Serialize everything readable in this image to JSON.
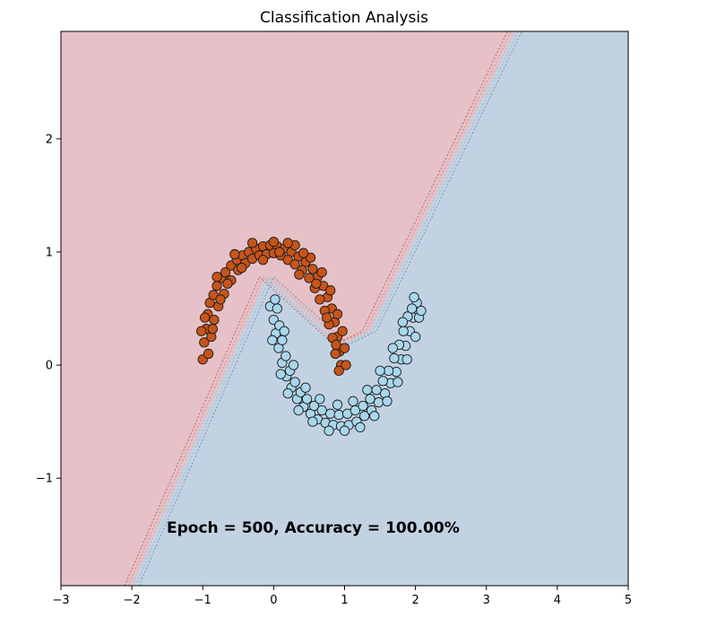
{
  "chart_data": {
    "type": "scatter",
    "title": "Classification Analysis",
    "xlabel": "",
    "ylabel": "",
    "xlim": [
      -3,
      5
    ],
    "ylim": [
      -1.95,
      2.95
    ],
    "x_ticks": [
      -3,
      -2,
      -1,
      0,
      1,
      2,
      3,
      4,
      5
    ],
    "x_tick_labels": [
      "−3",
      "−2",
      "−1",
      "0",
      "1",
      "2",
      "3",
      "4",
      "5"
    ],
    "y_ticks": [
      -1,
      0,
      1,
      2
    ],
    "y_tick_labels": [
      "−1",
      "0",
      "1",
      "2"
    ],
    "grid": false,
    "annotation": "Epoch = 500, Accuracy = 100.00%",
    "colors": {
      "region_class_0": "#e6c1c7",
      "region_class_1": "#c3d2e3",
      "points_class_0": "#c7541a",
      "points_class_1": "#a9d6ec",
      "point_edge": "#1a1a1a",
      "boundary_lines": [
        "#b05050",
        "#d08a7a",
        "#c8b8b8",
        "#9fb4c8",
        "#5f87ab"
      ]
    },
    "decision_boundary": [
      [
        -2.0,
        -1.95
      ],
      [
        -0.1,
        0.78
      ],
      [
        0.95,
        0.18
      ],
      [
        1.35,
        0.3
      ],
      [
        3.4,
        2.95
      ]
    ],
    "series": [
      {
        "class": 0,
        "points": [
          [
            -1.0,
            0.05
          ],
          [
            -0.98,
            0.2
          ],
          [
            -0.95,
            0.32
          ],
          [
            -0.93,
            0.45
          ],
          [
            -0.9,
            0.55
          ],
          [
            -0.85,
            0.62
          ],
          [
            -0.8,
            0.7
          ],
          [
            -0.74,
            0.77
          ],
          [
            -0.68,
            0.82
          ],
          [
            -0.6,
            0.88
          ],
          [
            -0.52,
            0.93
          ],
          [
            -0.44,
            0.97
          ],
          [
            -0.35,
            1.0
          ],
          [
            -0.25,
            1.03
          ],
          [
            -0.15,
            1.05
          ],
          [
            -0.05,
            1.06
          ],
          [
            0.05,
            1.05
          ],
          [
            0.15,
            1.03
          ],
          [
            0.25,
            1.0
          ],
          [
            0.35,
            0.96
          ],
          [
            0.45,
            0.91
          ],
          [
            0.55,
            0.85
          ],
          [
            0.62,
            0.78
          ],
          [
            0.7,
            0.7
          ],
          [
            0.76,
            0.6
          ],
          [
            0.82,
            0.5
          ],
          [
            0.86,
            0.38
          ],
          [
            0.9,
            0.25
          ],
          [
            0.93,
            0.12
          ],
          [
            0.95,
            0.0
          ],
          [
            -0.92,
            0.1
          ],
          [
            -0.88,
            0.25
          ],
          [
            -0.84,
            0.4
          ],
          [
            -0.78,
            0.52
          ],
          [
            -0.7,
            0.63
          ],
          [
            -0.6,
            0.75
          ],
          [
            -0.5,
            0.84
          ],
          [
            -0.4,
            0.9
          ],
          [
            -0.3,
            0.94
          ],
          [
            -0.2,
            0.97
          ],
          [
            -0.1,
            0.98
          ],
          [
            0.0,
            0.99
          ],
          [
            0.1,
            0.97
          ],
          [
            0.2,
            0.93
          ],
          [
            0.3,
            0.89
          ],
          [
            0.4,
            0.84
          ],
          [
            0.5,
            0.77
          ],
          [
            0.58,
            0.68
          ],
          [
            0.65,
            0.58
          ],
          [
            0.72,
            0.48
          ],
          [
            0.78,
            0.36
          ],
          [
            0.83,
            0.24
          ],
          [
            0.87,
            0.1
          ],
          [
            -1.02,
            0.3
          ],
          [
            -0.97,
            0.42
          ],
          [
            -0.8,
            0.78
          ],
          [
            -0.55,
            0.98
          ],
          [
            -0.3,
            1.08
          ],
          [
            0.0,
            1.09
          ],
          [
            0.3,
            1.06
          ],
          [
            0.52,
            0.95
          ],
          [
            0.68,
            0.82
          ],
          [
            0.8,
            0.66
          ],
          [
            0.9,
            0.45
          ],
          [
            0.97,
            0.3
          ],
          [
            1.0,
            0.15
          ],
          [
            1.02,
            0.0
          ],
          [
            -0.86,
            0.32
          ],
          [
            -0.75,
            0.58
          ],
          [
            -0.45,
            0.86
          ],
          [
            -0.15,
            0.93
          ],
          [
            0.2,
            1.08
          ],
          [
            0.42,
            0.99
          ],
          [
            0.6,
            0.72
          ],
          [
            0.75,
            0.42
          ],
          [
            0.88,
            0.18
          ],
          [
            0.92,
            -0.05
          ],
          [
            -0.65,
            0.72
          ],
          [
            0.08,
            1.0
          ],
          [
            0.36,
            0.8
          ]
        ]
      },
      {
        "class": 1,
        "points": [
          [
            -0.05,
            0.52
          ],
          [
            0.0,
            0.4
          ],
          [
            0.03,
            0.28
          ],
          [
            0.07,
            0.15
          ],
          [
            0.12,
            0.02
          ],
          [
            0.18,
            -0.1
          ],
          [
            0.25,
            -0.2
          ],
          [
            0.33,
            -0.3
          ],
          [
            0.42,
            -0.37
          ],
          [
            0.52,
            -0.43
          ],
          [
            0.62,
            -0.48
          ],
          [
            0.73,
            -0.51
          ],
          [
            0.84,
            -0.53
          ],
          [
            0.95,
            -0.54
          ],
          [
            1.06,
            -0.53
          ],
          [
            1.17,
            -0.5
          ],
          [
            1.28,
            -0.45
          ],
          [
            1.38,
            -0.4
          ],
          [
            1.48,
            -0.33
          ],
          [
            1.57,
            -0.25
          ],
          [
            1.65,
            -0.16
          ],
          [
            1.73,
            -0.06
          ],
          [
            1.8,
            0.05
          ],
          [
            1.86,
            0.17
          ],
          [
            1.92,
            0.3
          ],
          [
            1.97,
            0.42
          ],
          [
            2.02,
            0.55
          ],
          [
            0.05,
            0.5
          ],
          [
            0.08,
            0.35
          ],
          [
            0.12,
            0.22
          ],
          [
            0.17,
            0.08
          ],
          [
            0.23,
            -0.05
          ],
          [
            0.3,
            -0.15
          ],
          [
            0.38,
            -0.24
          ],
          [
            0.47,
            -0.3
          ],
          [
            0.57,
            -0.36
          ],
          [
            0.68,
            -0.4
          ],
          [
            0.8,
            -0.43
          ],
          [
            0.92,
            -0.44
          ],
          [
            1.04,
            -0.43
          ],
          [
            1.15,
            -0.4
          ],
          [
            1.26,
            -0.36
          ],
          [
            1.36,
            -0.3
          ],
          [
            1.45,
            -0.22
          ],
          [
            1.54,
            -0.14
          ],
          [
            1.62,
            -0.05
          ],
          [
            1.7,
            0.06
          ],
          [
            1.77,
            0.18
          ],
          [
            1.83,
            0.3
          ],
          [
            1.89,
            0.43
          ],
          [
            1.95,
            0.5
          ],
          [
            -0.02,
            0.22
          ],
          [
            0.1,
            -0.08
          ],
          [
            0.2,
            -0.25
          ],
          [
            0.35,
            -0.4
          ],
          [
            0.55,
            -0.5
          ],
          [
            0.78,
            -0.58
          ],
          [
            1.0,
            -0.58
          ],
          [
            1.22,
            -0.55
          ],
          [
            1.42,
            -0.45
          ],
          [
            1.6,
            -0.32
          ],
          [
            1.75,
            -0.15
          ],
          [
            1.88,
            0.05
          ],
          [
            2.0,
            0.25
          ],
          [
            2.05,
            0.42
          ],
          [
            0.15,
            0.3
          ],
          [
            0.28,
            0.0
          ],
          [
            0.45,
            -0.2
          ],
          [
            0.65,
            -0.3
          ],
          [
            0.9,
            -0.35
          ],
          [
            1.12,
            -0.32
          ],
          [
            1.32,
            -0.22
          ],
          [
            1.5,
            -0.05
          ],
          [
            1.68,
            0.15
          ],
          [
            1.82,
            0.38
          ],
          [
            0.02,
            0.58
          ],
          [
            1.98,
            0.6
          ],
          [
            2.08,
            0.48
          ]
        ]
      }
    ]
  }
}
